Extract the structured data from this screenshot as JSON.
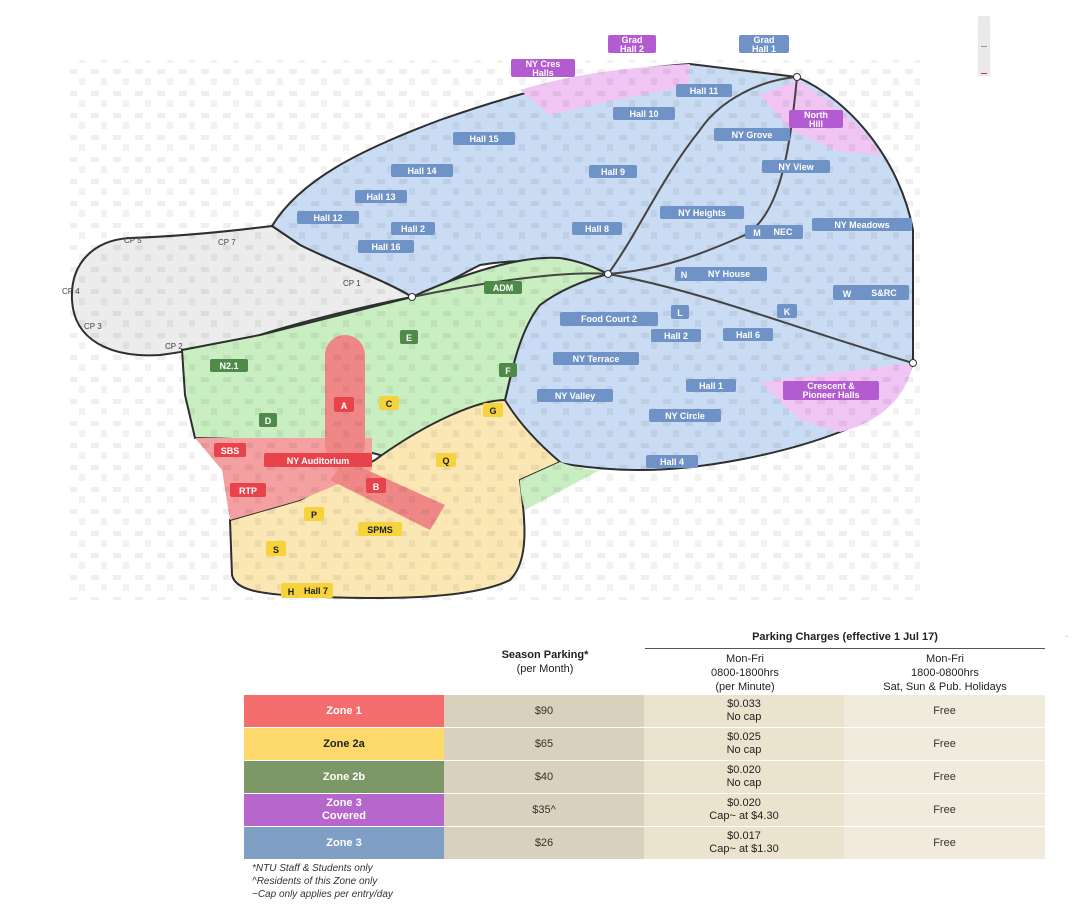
{
  "map": {
    "zone_colors": {
      "zone1": "#f07b7b",
      "zone2a": "#fbe7b3",
      "zone2b": "#c9eec2",
      "zone3": "#c9dcf3",
      "zone3_covered": "#f0c4f3",
      "unzoned": "#ececec"
    },
    "label_colors": {
      "zone1": "#e8434b",
      "zone2a": "#f6d23c",
      "zone2b": "#4f8a4a",
      "zone3": "#6f93c6",
      "zone3_covered": "#b35bd0"
    },
    "zone3_labels": {
      "grad_hall_1": "Grad\nHall 1",
      "hall_11": "Hall 11",
      "hall_10": "Hall 10",
      "hall_15": "Hall 15",
      "hall_14": "Hall 14",
      "hall_13": "Hall 13",
      "hall_12": "Hall 12",
      "hall_16": "Hall 16",
      "hall_2_north": "Hall 2",
      "hall_9": "Hall 9",
      "hall_8": "Hall 8",
      "ny_grove": "NY Grove",
      "ny_view": "NY View",
      "ny_heights": "NY Heights",
      "nec": "NEC",
      "ny_meadows": "NY Meadows",
      "ny_house": "NY House",
      "src": "S&RC",
      "food_court_2": "Food Court 2",
      "hall_2_south": "Hall 2",
      "hall_6": "Hall 6",
      "ny_terrace": "NY Terrace",
      "ny_valley": "NY Valley",
      "hall_1": "Hall 1",
      "ny_circle": "NY Circle",
      "hall_4": "Hall 4",
      "letter_m": "M",
      "letter_n": "N",
      "letter_w": "W",
      "letter_l": "L",
      "letter_k": "K"
    },
    "zone3_covered_labels": {
      "grad_hall_2": "Grad\nHall 2",
      "ny_cres_halls": "NY Cres\nHalls",
      "north_hill": "North\nHill",
      "crescent_pioneer": "Crescent &\nPioneer Halls"
    },
    "zone2b_labels": {
      "adm": "ADM",
      "letter_e": "E",
      "n2_1": "N2.1",
      "letter_f": "F",
      "letter_d": "D"
    },
    "zone2a_labels": {
      "letter_c": "C",
      "letter_g": "G",
      "letter_q": "Q",
      "letter_p": "P",
      "spms": "SPMS",
      "letter_s": "S",
      "letter_h": "H",
      "hall_7": "Hall 7"
    },
    "zone1_labels": {
      "letter_a": "A",
      "letter_b": "B",
      "sbs": "SBS",
      "ny_auditorium": "NY Auditorium",
      "rtp": "RTP"
    },
    "carparks": {
      "cp5": "CP 5",
      "cp7": "CP 7",
      "cp4": "CP 4",
      "cp1": "CP 1",
      "cp3": "CP 3",
      "cp2": "CP 2"
    }
  },
  "charges": {
    "title": "Parking Charges (effective 1 Jul 17)",
    "season_header": "Season Parking*",
    "season_sub": "(per Month)",
    "day_header_1": "Mon-Fri",
    "day_header_2": "0800-1800hrs",
    "day_header_3": "(per Minute)",
    "night_header_1": "Mon-Fri",
    "night_header_2": "1800-0800hrs",
    "night_header_3": "Sat, Sun & Pub. Holidays",
    "rows": [
      {
        "zone": "Zone 1",
        "season": "$90",
        "day_rate": "$0.033",
        "day_cap": "No cap",
        "night": "Free",
        "color": "#f36d6d",
        "text_color": "#ffffff"
      },
      {
        "zone": "Zone 2a",
        "season": "$65",
        "day_rate": "$0.025",
        "day_cap": "No cap",
        "night": "Free",
        "color": "#fcd96a",
        "text_color": "#222222"
      },
      {
        "zone": "Zone 2b",
        "season": "$40",
        "day_rate": "$0.020",
        "day_cap": "No cap",
        "night": "Free",
        "color": "#7c9866",
        "text_color": "#ffffff"
      },
      {
        "zone": "Zone 3\nCovered",
        "season": "$35^",
        "day_rate": "$0.020",
        "day_cap": "Cap~ at $4.30",
        "night": "Free",
        "color": "#b766cc",
        "text_color": "#ffffff"
      },
      {
        "zone": "Zone 3",
        "season": "$26",
        "day_rate": "$0.017",
        "day_cap": "Cap~ at $1.30",
        "night": "Free",
        "color": "#809fc4",
        "text_color": "#ffffff"
      }
    ],
    "notes": [
      "*NTU Staff & Students only",
      "^Residents of this Zone only",
      "~Cap only applies per entry/day"
    ]
  }
}
